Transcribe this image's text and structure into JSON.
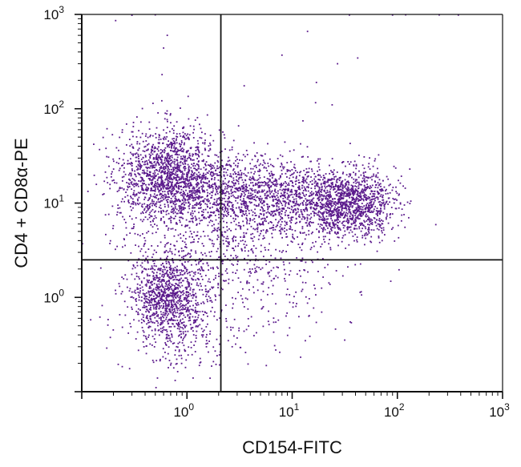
{
  "chart_data": {
    "type": "scatter",
    "title": "",
    "xlabel": "CD154-FITC",
    "ylabel": "CD4 + CD8α-PE",
    "xscale": "log",
    "yscale": "log",
    "xlim": [
      0.1,
      1000
    ],
    "ylim": [
      0.1,
      1000
    ],
    "x_ticks": [
      {
        "value": 1,
        "base": "10",
        "exp": "0"
      },
      {
        "value": 10,
        "base": "10",
        "exp": "1"
      },
      {
        "value": 100,
        "base": "10",
        "exp": "2"
      },
      {
        "value": 1000,
        "base": "10",
        "exp": "3"
      }
    ],
    "y_ticks": [
      {
        "value": 1,
        "base": "10",
        "exp": "0"
      },
      {
        "value": 10,
        "base": "10",
        "exp": "1"
      },
      {
        "value": 100,
        "base": "10",
        "exp": "2"
      },
      {
        "value": 1000,
        "base": "10",
        "exp": "3"
      }
    ],
    "quadrant_gates": {
      "x": 2.1,
      "y": 2.5
    },
    "grid": false,
    "legend": "none",
    "point_color": "#5b1a8c",
    "populations": [
      {
        "center": [
          0.7,
          20
        ],
        "spread": [
          0.25,
          0.25
        ],
        "count": 1500
      },
      {
        "center": [
          5.0,
          12
        ],
        "spread": [
          0.45,
          0.2
        ],
        "count": 1300
      },
      {
        "center": [
          35,
          10
        ],
        "spread": [
          0.22,
          0.17
        ],
        "count": 1200
      },
      {
        "center": [
          0.65,
          1.0
        ],
        "spread": [
          0.16,
          0.22
        ],
        "count": 850
      },
      {
        "center": [
          2.5,
          3.0
        ],
        "spread": [
          0.55,
          0.45
        ],
        "count": 900
      },
      {
        "center": [
          0.8,
          0.5
        ],
        "spread": [
          0.25,
          0.3
        ],
        "count": 250
      }
    ],
    "points": [
      [
        0.21,
        860
      ],
      [
        0.65,
        600
      ],
      [
        0.6,
        440
      ],
      [
        0.58,
        230
      ],
      [
        14,
        660
      ],
      [
        8,
        370
      ],
      [
        17,
        190
      ],
      [
        24,
        110
      ],
      [
        27,
        300
      ],
      [
        42,
        345
      ],
      [
        90,
        985
      ],
      [
        120,
        990
      ],
      [
        35,
        985
      ],
      [
        0.5,
        990
      ],
      [
        3.5,
        175
      ],
      [
        0.3,
        980
      ],
      [
        250,
        988
      ],
      [
        380,
        985
      ],
      [
        0.13,
        42
      ],
      [
        0.17,
        38
      ]
    ]
  }
}
